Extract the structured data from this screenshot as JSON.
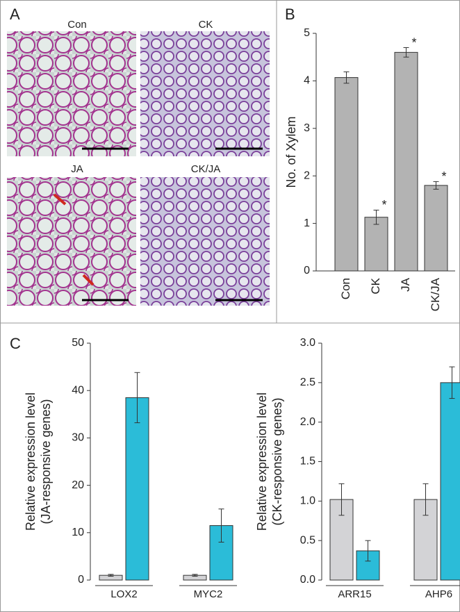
{
  "panel_labels": [
    "A",
    "B",
    "C"
  ],
  "micrographs": [
    "Con",
    "CK",
    "JA",
    "CK/JA"
  ],
  "chart_data": [
    {
      "type": "bar",
      "ylabel": "No. of Xylem",
      "categories": [
        "Con",
        "CK",
        "JA",
        "CK/JA"
      ],
      "values": [
        4.07,
        1.13,
        4.6,
        1.8
      ],
      "errors": [
        0.12,
        0.15,
        0.1,
        0.08
      ],
      "markers": [
        null,
        "*",
        "*",
        "*"
      ],
      "color": "#b3b3b3",
      "ylim": [
        0,
        5
      ],
      "yticks": [
        0,
        1,
        2,
        3,
        4,
        5
      ],
      "xlabel_rotated": true
    },
    {
      "type": "bar",
      "ylabel": [
        "Relative expression level",
        "(JA-responsive genes)"
      ],
      "categories": [
        "LOX2",
        "MYC2"
      ],
      "series": [
        {
          "color": "#d3d3d6",
          "values": [
            1,
            1
          ],
          "errors": [
            0.2,
            0.2
          ]
        },
        {
          "color": "#2bbcd8",
          "values": [
            38.5,
            11.5
          ],
          "errors": [
            5.3,
            3.5
          ]
        }
      ],
      "ylim": [
        0,
        50
      ],
      "yticks": [
        0,
        10,
        20,
        30,
        40,
        50
      ]
    },
    {
      "type": "bar",
      "ylabel": [
        "Relative expression level",
        "(CK-responsive genes)"
      ],
      "categories": [
        "ARR15",
        "AHP6"
      ],
      "series": [
        {
          "color": "#d3d3d6",
          "values": [
            1.02,
            1.02
          ],
          "errors": [
            0.2,
            0.2
          ]
        },
        {
          "color": "#2bbcd8",
          "values": [
            0.37,
            2.5
          ],
          "errors": [
            0.13,
            0.2
          ]
        }
      ],
      "ylim": [
        0,
        3
      ],
      "yticks": [
        {
          "value": 0,
          "label": "0.0"
        },
        {
          "value": 0.5,
          "label": "0.5"
        },
        {
          "value": 1,
          "label": "1.0"
        },
        {
          "value": 1.5,
          "label": "1.5"
        },
        {
          "value": 2,
          "label": "2.0"
        },
        {
          "value": 2.5,
          "label": "2.5"
        },
        {
          "value": 3,
          "label": "3.0"
        }
      ]
    }
  ]
}
